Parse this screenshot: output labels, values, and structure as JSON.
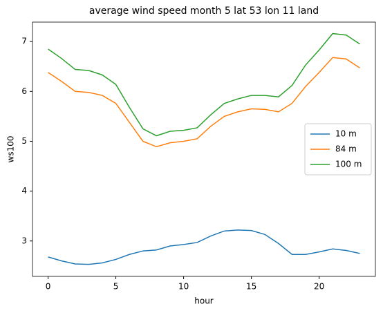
{
  "chart_data": {
    "type": "line",
    "title": "average wind speed month 5 lat 53 lon 11 land",
    "x_label": "hour",
    "y_label": "ws100",
    "x": [
      0,
      1,
      2,
      3,
      4,
      5,
      6,
      7,
      8,
      9,
      10,
      11,
      12,
      13,
      14,
      15,
      16,
      17,
      18,
      19,
      20,
      21,
      22,
      23
    ],
    "series": [
      {
        "name": "10 m",
        "color": "#1f77b4",
        "values": [
          2.68,
          2.6,
          2.54,
          2.53,
          2.56,
          2.63,
          2.73,
          2.8,
          2.82,
          2.9,
          2.93,
          2.97,
          3.1,
          3.2,
          3.22,
          3.21,
          3.13,
          2.95,
          2.73,
          2.73,
          2.78,
          2.84,
          2.81,
          2.75
        ]
      },
      {
        "name": "84 m",
        "color": "#ff7f0e",
        "values": [
          6.38,
          6.2,
          6.0,
          5.98,
          5.92,
          5.76,
          5.38,
          5.0,
          4.89,
          4.97,
          5.0,
          5.05,
          5.3,
          5.5,
          5.59,
          5.65,
          5.64,
          5.59,
          5.76,
          6.1,
          6.38,
          6.68,
          6.65,
          6.47
        ]
      },
      {
        "name": "100 m",
        "color": "#2ca02c",
        "values": [
          6.85,
          6.66,
          6.44,
          6.42,
          6.33,
          6.14,
          5.68,
          5.25,
          5.11,
          5.2,
          5.22,
          5.27,
          5.53,
          5.76,
          5.85,
          5.92,
          5.92,
          5.89,
          6.12,
          6.53,
          6.83,
          7.16,
          7.13,
          6.95
        ]
      }
    ],
    "xlim": [
      -1.15,
      24.15
    ],
    "xticks": [
      0,
      5,
      10,
      15,
      20
    ],
    "ylim": [
      2.29,
      7.39
    ],
    "yticks": [
      3,
      4,
      5,
      6,
      7
    ],
    "legend": "center right"
  }
}
